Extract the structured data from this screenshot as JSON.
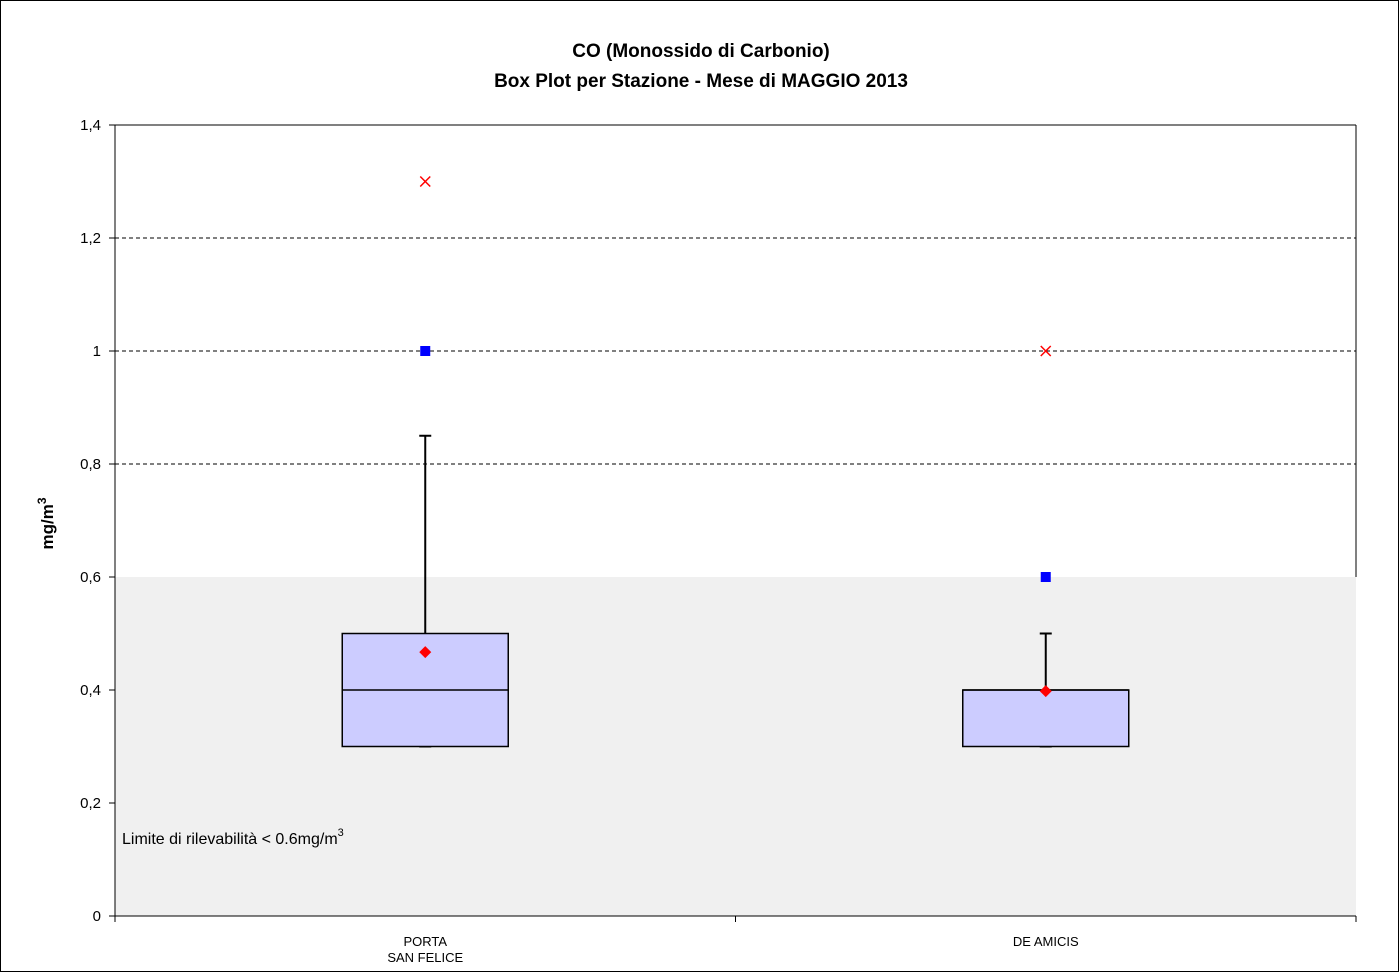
{
  "chart_data": {
    "type": "box",
    "title_line1": "CO (Monossido di Carbonio)",
    "title_line2": "Box Plot per Stazione - Mese di MAGGIO 2013",
    "ylabel": "mg/m",
    "ylabel_sup": "3",
    "ylim": [
      0,
      1.4
    ],
    "yticks": [
      {
        "value": 0,
        "label": "0"
      },
      {
        "value": 0.2,
        "label": "0,2"
      },
      {
        "value": 0.4,
        "label": "0,4"
      },
      {
        "value": 0.6,
        "label": "0,6"
      },
      {
        "value": 0.8,
        "label": "0,8"
      },
      {
        "value": 1.0,
        "label": "1"
      },
      {
        "value": 1.2,
        "label": "1,2"
      },
      {
        "value": 1.4,
        "label": "1,4"
      }
    ],
    "grid": "dashed-horizontal",
    "detection_limit": {
      "value": 0.6,
      "label": "Limite di rilevabilità < 0.6mg/m",
      "label_sup": "3",
      "fill": "#f0f0f0"
    },
    "colors": {
      "box_fill": "#ccccff",
      "mean_marker": "#ff0000",
      "max_marker": "#ff0000",
      "p98_marker": "#0000ff"
    },
    "categories": [
      {
        "name_lines": [
          "PORTA",
          "SAN FELICE"
        ],
        "min": 0.3,
        "q1": 0.3,
        "median": 0.4,
        "q3": 0.5,
        "whisker_high": 0.85,
        "mean": 0.467,
        "p98": 1.0,
        "max": 1.3
      },
      {
        "name_lines": [
          "DE AMICIS"
        ],
        "min": 0.3,
        "q1": 0.3,
        "median": 0.4,
        "q3": 0.4,
        "whisker_high": 0.5,
        "mean": 0.398,
        "p98": 0.6,
        "max": 1.0
      }
    ]
  }
}
